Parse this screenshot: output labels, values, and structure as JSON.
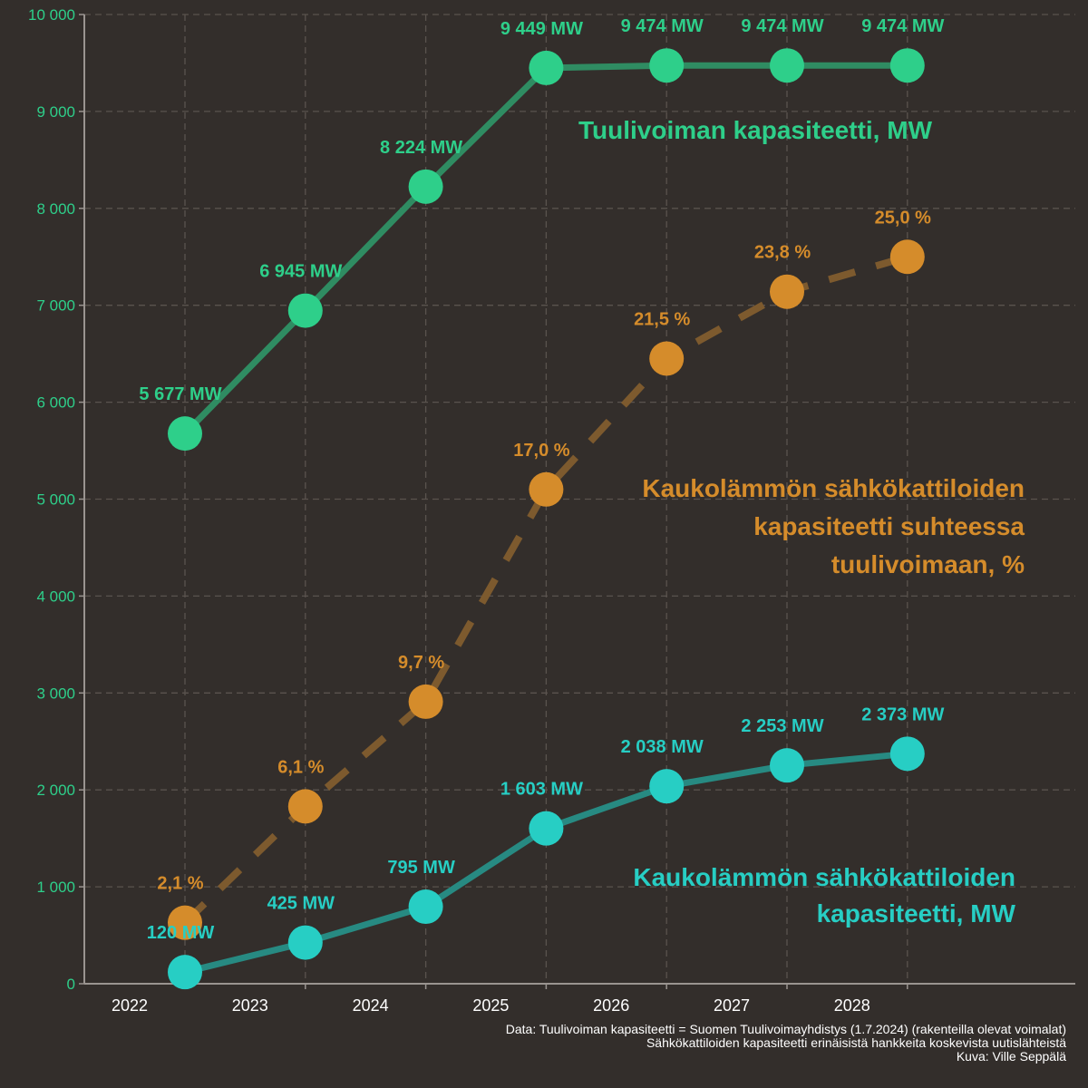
{
  "chart_data": {
    "type": "line",
    "categories": [
      "2022",
      "2023",
      "2024",
      "2025",
      "2026",
      "2027",
      "2028"
    ],
    "ylim": [
      0,
      10000
    ],
    "yticks": [
      0,
      1000,
      2000,
      3000,
      4000,
      5000,
      6000,
      7000,
      8000,
      9000,
      10000
    ],
    "ytick_labels": [
      "0",
      "1 000",
      "2 000",
      "3 000",
      "4 000",
      "5 000",
      "6 000",
      "7 000",
      "8 000",
      "9 000",
      "10 000"
    ],
    "grid": true,
    "series": [
      {
        "name": "Tuulivoiman kapasiteetti, MW",
        "name_lines": [
          "Tuulivoiman kapasiteetti, MW"
        ],
        "values": [
          5677,
          6945,
          8224,
          9449,
          9474,
          9474,
          9474
        ],
        "labels": [
          "5 677 MW",
          "6 945 MW",
          "8 224 MW",
          "9 449 MW",
          "9 474 MW",
          "9 474 MW",
          "9 474 MW"
        ],
        "color": "#2ecf8a",
        "line_color": "#2f8c62",
        "dashed": false
      },
      {
        "name": "Kaukolämmön sähkökattiloiden kapasiteetti suhteessa tuulivoimaan, %",
        "name_lines": [
          "Kaukolämmön sähkökattiloiden",
          "kapasiteetti suhteessa",
          "tuulivoimaan, %"
        ],
        "values": [
          2.1,
          6.1,
          9.7,
          17.0,
          21.5,
          23.8,
          25.0
        ],
        "plot_scale": 300,
        "labels": [
          "2,1 %",
          "6,1 %",
          "9,7 %",
          "17,0 %",
          "21,5 %",
          "23,8 %",
          "25,0 %"
        ],
        "color": "#d58c2b",
        "line_color": "#7d5a2e",
        "dashed": true
      },
      {
        "name": "Kaukolämmön sähkökattiloiden kapasiteetti, MW",
        "name_lines": [
          "Kaukolämmön sähkökattiloiden",
          "kapasiteetti, MW"
        ],
        "values": [
          120,
          425,
          795,
          1603,
          2038,
          2253,
          2373
        ],
        "labels": [
          "120 MW",
          "425 MW",
          "795 MW",
          "1 603 MW",
          "2 038 MW",
          "2 253 MW",
          "2 373 MW"
        ],
        "color": "#27cec4",
        "line_color": "#278a82",
        "dashed": false
      }
    ],
    "axis_color": "#2ecf8a",
    "xtick_color": "#ffffff"
  },
  "credits": {
    "line1": "Data: Tuulivoiman kapasiteetti = Suomen Tuulivoimayhdistys (1.7.2024) (rakenteilla olevat voimalat)",
    "line2": "Sähkökattiloiden kapasiteetti erinäisistä hankkeita koskevista uutislähteistä",
    "line3": "Kuva: Ville Seppälä"
  }
}
